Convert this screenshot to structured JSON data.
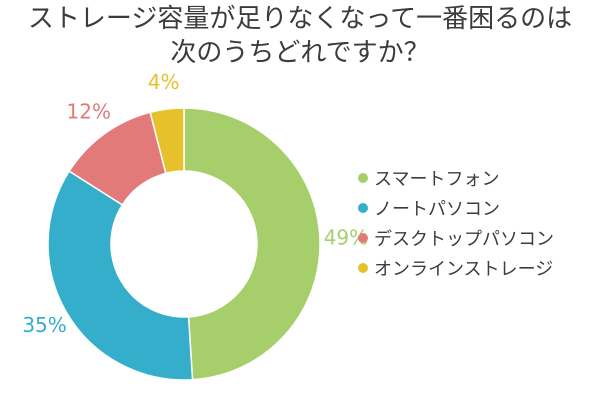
{
  "chart_data": {
    "type": "donut",
    "title_lines": [
      "ストレージ容量が足りなくなって一番困るのは",
      "次のうちどれですか？"
    ],
    "categories": [
      "スマートフォン",
      "ノートパソコン",
      "デスクトップパソコン",
      "オンラインストレージ"
    ],
    "values": [
      49,
      35,
      12,
      4
    ],
    "unit": "%",
    "data_labels": [
      "49%",
      "35%",
      "12%",
      "4%"
    ],
    "colors": [
      "#a6ce6a",
      "#35aecb",
      "#e27a7a",
      "#e7c12b"
    ],
    "legend_position": "right",
    "start_angle": "top",
    "direction": "clockwise"
  }
}
